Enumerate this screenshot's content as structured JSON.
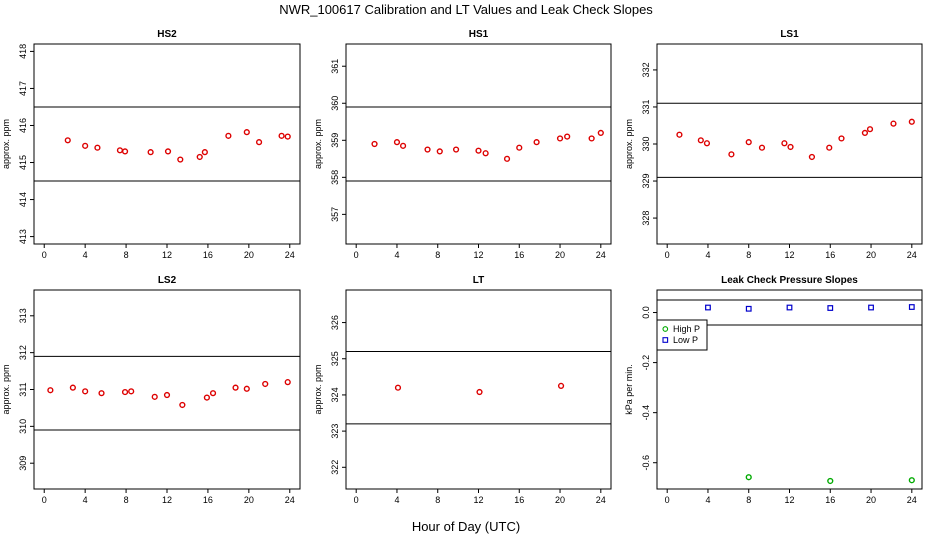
{
  "main_title": "NWR_100617  Calibration and LT Values and Leak Check Slopes",
  "x_axis_label": "Hour of Day (UTC)",
  "chart_data": [
    {
      "id": "hs2",
      "type": "scatter",
      "title": "HS2",
      "ylabel": "approx. ppm",
      "xlim": [
        -1,
        25
      ],
      "ylim": [
        412.8,
        418.2
      ],
      "xticks": [
        "0",
        "4",
        "8",
        "12",
        "16",
        "20",
        "24"
      ],
      "yticks": [
        "413",
        "414",
        "415",
        "416",
        "417",
        "418"
      ],
      "hlines": [
        416.5,
        414.5
      ],
      "series": [
        {
          "color": "#dd0000",
          "marker": "circle",
          "x": [
            2.3,
            4.0,
            5.2,
            7.4,
            7.9,
            10.4,
            12.1,
            13.3,
            15.2,
            15.7,
            18.0,
            19.8,
            21.0,
            23.2,
            23.8
          ],
          "y": [
            415.6,
            415.45,
            415.4,
            415.33,
            415.3,
            415.28,
            415.3,
            415.08,
            415.15,
            415.28,
            415.72,
            415.82,
            415.55,
            415.72,
            415.7
          ]
        }
      ]
    },
    {
      "id": "hs1",
      "type": "scatter",
      "title": "HS1",
      "ylabel": "approx. ppm",
      "xlim": [
        -1,
        25
      ],
      "ylim": [
        356.2,
        361.6
      ],
      "xticks": [
        "0",
        "4",
        "8",
        "12",
        "16",
        "20",
        "24"
      ],
      "yticks": [
        "357",
        "358",
        "359",
        "360",
        "361"
      ],
      "hlines": [
        359.9,
        357.9
      ],
      "series": [
        {
          "color": "#dd0000",
          "marker": "circle",
          "x": [
            1.8,
            4.0,
            4.6,
            7.0,
            8.2,
            9.8,
            12.0,
            12.7,
            14.8,
            16.0,
            17.7,
            20.0,
            20.7,
            23.1,
            24.0
          ],
          "y": [
            358.9,
            358.95,
            358.85,
            358.75,
            358.7,
            358.75,
            358.72,
            358.65,
            358.5,
            358.8,
            358.95,
            359.05,
            359.1,
            359.05,
            359.2
          ]
        }
      ]
    },
    {
      "id": "ls1",
      "type": "scatter",
      "title": "LS1",
      "ylabel": "approx. ppm",
      "xlim": [
        -1,
        25
      ],
      "ylim": [
        327.3,
        332.7
      ],
      "xticks": [
        "0",
        "4",
        "8",
        "12",
        "16",
        "20",
        "24"
      ],
      "yticks": [
        "328",
        "329",
        "330",
        "331",
        "332"
      ],
      "hlines": [
        331.1,
        329.1
      ],
      "series": [
        {
          "color": "#dd0000",
          "marker": "circle",
          "x": [
            1.2,
            3.3,
            3.9,
            6.3,
            8.0,
            9.3,
            11.5,
            12.1,
            14.2,
            15.9,
            17.1,
            19.4,
            19.9,
            22.2,
            24.0
          ],
          "y": [
            330.25,
            330.1,
            330.02,
            329.72,
            330.05,
            329.9,
            330.02,
            329.92,
            329.65,
            329.9,
            330.15,
            330.3,
            330.4,
            330.55,
            330.6
          ]
        }
      ]
    },
    {
      "id": "ls2",
      "type": "scatter",
      "title": "LS2",
      "ylabel": "approx. ppm",
      "xlim": [
        -1,
        25
      ],
      "ylim": [
        308.3,
        313.7
      ],
      "xticks": [
        "0",
        "4",
        "8",
        "12",
        "16",
        "20",
        "24"
      ],
      "yticks": [
        "309",
        "310",
        "311",
        "312",
        "313"
      ],
      "hlines": [
        311.9,
        309.9
      ],
      "series": [
        {
          "color": "#dd0000",
          "marker": "circle",
          "x": [
            0.6,
            2.8,
            4.0,
            5.6,
            7.9,
            8.5,
            10.8,
            12.0,
            13.5,
            15.9,
            16.5,
            18.7,
            19.8,
            21.6,
            23.8
          ],
          "y": [
            310.98,
            311.05,
            310.95,
            310.9,
            310.93,
            310.95,
            310.8,
            310.85,
            310.58,
            310.78,
            310.9,
            311.05,
            311.02,
            311.15,
            311.2
          ]
        }
      ]
    },
    {
      "id": "lt",
      "type": "scatter",
      "title": "LT",
      "ylabel": "approx. ppm",
      "xlim": [
        -1,
        25
      ],
      "ylim": [
        321.4,
        326.9
      ],
      "xticks": [
        "0",
        "4",
        "8",
        "12",
        "16",
        "20",
        "24"
      ],
      "yticks": [
        "322",
        "323",
        "324",
        "325",
        "326"
      ],
      "hlines": [
        325.2,
        323.2
      ],
      "series": [
        {
          "color": "#dd0000",
          "marker": "circle",
          "x": [
            4.1,
            12.1,
            20.1
          ],
          "y": [
            324.2,
            324.08,
            324.25
          ]
        }
      ]
    },
    {
      "id": "leak",
      "type": "scatter",
      "title": "Leak Check Pressure Slopes",
      "ylabel": "kPa per min.",
      "xlim": [
        -1,
        25
      ],
      "ylim": [
        -0.705,
        0.09
      ],
      "xticks": [
        "0",
        "4",
        "8",
        "12",
        "16",
        "20",
        "24"
      ],
      "yticks": [
        "-0.6",
        "-0.4",
        "-0.2",
        "0.0"
      ],
      "hlines": [
        0.05,
        -0.05
      ],
      "legend": {
        "position": "top-left"
      },
      "series": [
        {
          "name": "High P",
          "color": "#00aa00",
          "marker": "circle",
          "x": [
            8.0,
            16.0,
            24.0
          ],
          "y": [
            -0.658,
            -0.673,
            -0.67
          ]
        },
        {
          "name": "Low P",
          "color": "#0000cc",
          "marker": "square",
          "x": [
            4.0,
            8.0,
            12.0,
            16.0,
            20.0,
            24.0
          ],
          "y": [
            0.02,
            0.015,
            0.02,
            0.018,
            0.02,
            0.022
          ]
        }
      ]
    }
  ]
}
